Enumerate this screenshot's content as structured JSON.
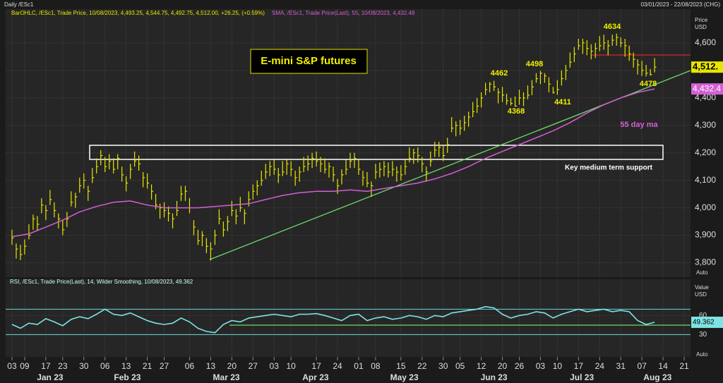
{
  "header": {
    "left": "Daily /ESc1",
    "right": "03/01/2023 - 22/08/2023 (CHG)"
  },
  "chart_data": [
    {
      "type": "ohlc",
      "title": "E-mini S&P futures",
      "y_label": "Price",
      "y_unit": "USD",
      "scale_mode": "Auto",
      "annotations": [
        "4634",
        "4462",
        "4498",
        "4368",
        "4411",
        "4478",
        "55 day ma",
        "Key medium term support"
      ],
      "xlim": [
        -1.5,
        160.5
      ],
      "ylim": [
        3750,
        4710
      ],
      "grid": true,
      "yticks": [
        {
          "value": 3800,
          "label": "3,800"
        },
        {
          "value": 3900,
          "label": "3,900"
        },
        {
          "value": 4000,
          "label": "4,000"
        },
        {
          "value": 4100,
          "label": "4,100"
        },
        {
          "value": 4200,
          "label": "4,200"
        },
        {
          "value": 4300,
          "label": "4,300"
        },
        {
          "value": 4400,
          "label": "4,400"
        },
        {
          "value": 4500,
          "label": "4,500"
        },
        {
          "value": 4600,
          "label": "4,600"
        }
      ],
      "series": [
        {
          "name": "BarOHLC, /ESc1, Trade Price, 10/08/2023, 4,493.25, 4,544.75, 4,492.75, 4,512.00, +26.25, (+0.59%)",
          "color": "#e6e600",
          "last_label": "4,512.",
          "x": [
            0,
            1,
            2,
            3,
            4,
            5,
            6,
            7,
            8,
            9,
            10,
            11,
            12,
            13,
            14,
            15,
            16,
            17,
            18,
            19,
            20,
            21,
            22,
            23,
            24,
            25,
            26,
            27,
            28,
            29,
            30,
            31,
            32,
            33,
            34,
            35,
            36,
            37,
            38,
            39,
            40,
            41,
            42,
            43,
            44,
            45,
            46,
            47,
            48,
            49,
            50,
            51,
            52,
            53,
            54,
            55,
            56,
            57,
            58,
            59,
            60,
            61,
            62,
            63,
            64,
            65,
            66,
            67,
            68,
            69,
            70,
            71,
            72,
            73,
            74,
            75,
            76,
            77,
            78,
            79,
            80,
            81,
            82,
            83,
            84,
            85,
            86,
            87,
            88,
            89,
            90,
            91,
            92,
            93,
            94,
            95,
            96,
            97,
            98,
            99,
            100,
            101,
            102,
            103,
            104,
            105,
            106,
            107,
            108,
            109,
            110,
            111,
            112,
            113,
            114,
            115,
            116,
            117,
            118,
            119,
            120,
            121,
            122,
            123,
            124,
            125,
            126,
            127,
            128,
            129,
            130,
            131,
            132,
            133,
            134,
            135,
            136,
            137,
            138,
            139,
            140,
            141,
            142,
            143,
            144,
            145,
            146,
            147,
            148,
            149,
            150,
            151,
            152
          ],
          "high": [
            3920,
            3870,
            3865,
            3885,
            3940,
            3975,
            3970,
            4035,
            4010,
            4065,
            4020,
            3980,
            3955,
            3985,
            4060,
            4055,
            4110,
            4125,
            4080,
            4145,
            4180,
            4210,
            4185,
            4195,
            4180,
            4195,
            4150,
            4115,
            4160,
            4205,
            4190,
            4130,
            4125,
            4085,
            4050,
            4015,
            4020,
            4005,
            3980,
            4025,
            4080,
            4080,
            4035,
            3955,
            3920,
            3915,
            3890,
            3875,
            3920,
            3995,
            3950,
            3970,
            4025,
            3995,
            4040,
            3995,
            4060,
            4085,
            4100,
            4135,
            4160,
            4170,
            4175,
            4145,
            4170,
            4175,
            4170,
            4135,
            4150,
            4185,
            4190,
            4200,
            4205,
            4185,
            4180,
            4165,
            4150,
            4105,
            4140,
            4175,
            4200,
            4200,
            4175,
            4135,
            4130,
            4095,
            4160,
            4165,
            4170,
            4165,
            4170,
            4150,
            4155,
            4175,
            4220,
            4215,
            4220,
            4185,
            4150,
            4205,
            4240,
            4240,
            4225,
            4255,
            4330,
            4315,
            4320,
            4335,
            4350,
            4385,
            4400,
            4420,
            4455,
            4458,
            4462,
            4435,
            4440,
            4415,
            4400,
            4405,
            4430,
            4420,
            4445,
            4465,
            4490,
            4498,
            4490,
            4475,
            4440,
            4465,
            4500,
            4520,
            4565,
            4585,
            4615,
            4615,
            4610,
            4595,
            4600,
            4625,
            4630,
            4610,
            4630,
            4634,
            4620,
            4615,
            4590,
            4565,
            4540,
            4535,
            4520,
            4505,
            4544.75
          ],
          "low": [
            3865,
            3815,
            3810,
            3830,
            3885,
            3920,
            3915,
            3980,
            3955,
            4010,
            3965,
            3925,
            3900,
            3930,
            4005,
            4000,
            4055,
            4070,
            4025,
            4090,
            4125,
            4155,
            4130,
            4140,
            4125,
            4140,
            4095,
            4060,
            4105,
            4150,
            4135,
            4075,
            4070,
            4030,
            3995,
            3960,
            3965,
            3950,
            3925,
            3970,
            4025,
            4025,
            3980,
            3900,
            3865,
            3860,
            3835,
            3808,
            3865,
            3940,
            3895,
            3915,
            3970,
            3940,
            3985,
            3940,
            4005,
            4030,
            4045,
            4080,
            4105,
            4115,
            4120,
            4090,
            4115,
            4120,
            4115,
            4080,
            4095,
            4130,
            4135,
            4145,
            4150,
            4130,
            4125,
            4110,
            4095,
            4050,
            4085,
            4120,
            4145,
            4145,
            4120,
            4080,
            4075,
            4040,
            4105,
            4110,
            4115,
            4110,
            4115,
            4095,
            4100,
            4120,
            4165,
            4160,
            4165,
            4130,
            4095,
            4150,
            4185,
            4185,
            4170,
            4200,
            4275,
            4260,
            4265,
            4280,
            4295,
            4330,
            4345,
            4365,
            4410,
            4420,
            4425,
            4380,
            4385,
            4375,
            4372,
            4368,
            4375,
            4370,
            4395,
            4410,
            4455,
            4450,
            4455,
            4420,
            4415,
            4411,
            4445,
            4465,
            4510,
            4530,
            4575,
            4560,
            4555,
            4540,
            4545,
            4570,
            4575,
            4555,
            4590,
            4590,
            4585,
            4550,
            4535,
            4510,
            4485,
            4480,
            4478,
            4481,
            4492.75
          ],
          "close": [
            3890,
            3850,
            3830,
            3860,
            3900,
            3960,
            3940,
            4010,
            3990,
            4030,
            3990,
            3960,
            3920,
            3960,
            4020,
            4040,
            4080,
            4100,
            4060,
            4110,
            4150,
            4190,
            4150,
            4170,
            4140,
            4180,
            4120,
            4090,
            4140,
            4170,
            4160,
            4110,
            4090,
            4060,
            4010,
            4000,
            3990,
            3980,
            3960,
            3990,
            4050,
            4060,
            4000,
            3930,
            3880,
            3900,
            3860,
            3850,
            3900,
            3960,
            3920,
            3950,
            3990,
            3970,
            4000,
            3980,
            4030,
            4060,
            4080,
            4100,
            4130,
            4150,
            4140,
            4120,
            4130,
            4160,
            4140,
            4110,
            4130,
            4150,
            4160,
            4180,
            4170,
            4160,
            4140,
            4150,
            4120,
            4080,
            4120,
            4140,
            4170,
            4180,
            4140,
            4110,
            4090,
            4080,
            4130,
            4140,
            4150,
            4130,
            4140,
            4130,
            4120,
            4150,
            4180,
            4200,
            4190,
            4160,
            4130,
            4170,
            4210,
            4220,
            4190,
            4230,
            4290,
            4300,
            4290,
            4310,
            4330,
            4350,
            4370,
            4400,
            4430,
            4450,
            4440,
            4420,
            4410,
            4390,
            4380,
            4370,
            4400,
            4400,
            4410,
            4440,
            4470,
            4490,
            4480,
            4450,
            4420,
            4430,
            4470,
            4500,
            4530,
            4560,
            4590,
            4600,
            4580,
            4570,
            4580,
            4590,
            4600,
            4590,
            4610,
            4620,
            4600,
            4590,
            4560,
            4540,
            4520,
            4500,
            4490,
            4485,
            4512
          ]
        },
        {
          "name": "SMA, /ESc1, Trade Price(Last), 55, 10/08/2023, 4,432.48",
          "color": "#d45fd4",
          "last_label": "4,432.4",
          "x": [
            0,
            4,
            8,
            12,
            16,
            20,
            24,
            28,
            32,
            36,
            40,
            44,
            48,
            52,
            56,
            60,
            64,
            68,
            72,
            76,
            80,
            84,
            88,
            92,
            96,
            100,
            104,
            108,
            112,
            116,
            120,
            124,
            128,
            132,
            136,
            140,
            144,
            148,
            152
          ],
          "values": [
            3895,
            3905,
            3930,
            3955,
            3985,
            4005,
            4020,
            4025,
            4010,
            4000,
            4000,
            4000,
            4005,
            4010,
            4015,
            4030,
            4045,
            4055,
            4060,
            4060,
            4065,
            4060,
            4070,
            4080,
            4090,
            4105,
            4125,
            4150,
            4180,
            4205,
            4230,
            4255,
            4280,
            4310,
            4345,
            4375,
            4400,
            4420,
            4432.48
          ]
        }
      ]
    },
    {
      "type": "line",
      "y_label": "Value",
      "y_unit": "USD",
      "scale_mode": "Auto",
      "xlim": [
        -1.5,
        160.5
      ],
      "ylim": [
        -4,
        107
      ],
      "yticks": [
        60,
        30
      ],
      "hlines": [
        70,
        30
      ],
      "grid": true,
      "xticks": [
        {
          "value": 0,
          "label": "03"
        },
        {
          "value": 3,
          "label": "09"
        },
        {
          "value": 8,
          "label": "17"
        },
        {
          "value": 12,
          "label": "23"
        },
        {
          "value": 17,
          "label": "30"
        },
        {
          "value": 22,
          "label": "06"
        },
        {
          "value": 27,
          "label": "13"
        },
        {
          "value": 32,
          "label": "21"
        },
        {
          "value": 36,
          "label": "27"
        },
        {
          "value": 42,
          "label": "06"
        },
        {
          "value": 47,
          "label": "13"
        },
        {
          "value": 52,
          "label": "20"
        },
        {
          "value": 57,
          "label": "27"
        },
        {
          "value": 62,
          "label": "03"
        },
        {
          "value": 66,
          "label": "10"
        },
        {
          "value": 72,
          "label": "17"
        },
        {
          "value": 77,
          "label": "24"
        },
        {
          "value": 82,
          "label": "01"
        },
        {
          "value": 86,
          "label": "08"
        },
        {
          "value": 92,
          "label": "15"
        },
        {
          "value": 97,
          "label": "22"
        },
        {
          "value": 102,
          "label": "30"
        },
        {
          "value": 106,
          "label": "05"
        },
        {
          "value": 111,
          "label": "12"
        },
        {
          "value": 116,
          "label": "20"
        },
        {
          "value": 120,
          "label": "26"
        },
        {
          "value": 125,
          "label": "03"
        },
        {
          "value": 129,
          "label": "10"
        },
        {
          "value": 134,
          "label": "17"
        },
        {
          "value": 139,
          "label": "24"
        },
        {
          "value": 144,
          "label": "31"
        },
        {
          "value": 149,
          "label": "07"
        },
        {
          "value": 154,
          "label": "14"
        },
        {
          "value": 159,
          "label": "21"
        }
      ],
      "month_labels": [
        {
          "value": 9,
          "label": "Jan 23"
        },
        {
          "value": 27.3,
          "label": "Feb 23"
        },
        {
          "value": 50.7,
          "label": "Mar 23"
        },
        {
          "value": 71.8,
          "label": "Apr 23"
        },
        {
          "value": 92.8,
          "label": "May 23"
        },
        {
          "value": 114,
          "label": "Jun 23"
        },
        {
          "value": 134.8,
          "label": "Jul 23"
        },
        {
          "value": 152.7,
          "label": "Aug 23"
        }
      ],
      "series": [
        {
          "name": "RSI, /ESc1, Trade Price(Last), 14, Wilder Smoothing, 10/08/2023, 49.362",
          "color": "#7fe3e3",
          "last_label": "49.362",
          "x": [
            0,
            2,
            4,
            6,
            8,
            10,
            12,
            14,
            16,
            18,
            20,
            22,
            24,
            26,
            28,
            30,
            32,
            34,
            36,
            38,
            40,
            42,
            44,
            46,
            48,
            50,
            52,
            54,
            56,
            58,
            60,
            62,
            64,
            66,
            68,
            70,
            72,
            74,
            76,
            78,
            80,
            82,
            84,
            86,
            88,
            90,
            92,
            94,
            96,
            98,
            100,
            102,
            104,
            106,
            108,
            110,
            112,
            114,
            116,
            118,
            120,
            122,
            124,
            126,
            128,
            130,
            132,
            134,
            136,
            138,
            140,
            142,
            144,
            146,
            148,
            150,
            152
          ],
          "values": [
            46,
            40,
            48,
            46,
            55,
            50,
            44,
            54,
            58,
            55,
            62,
            70,
            62,
            60,
            64,
            58,
            52,
            48,
            46,
            48,
            56,
            50,
            40,
            35,
            33,
            46,
            52,
            50,
            56,
            58,
            60,
            62,
            60,
            58,
            62,
            62,
            63,
            60,
            56,
            52,
            60,
            62,
            52,
            56,
            58,
            54,
            56,
            60,
            58,
            54,
            60,
            58,
            64,
            66,
            68,
            70,
            74,
            72,
            62,
            56,
            60,
            62,
            66,
            64,
            56,
            62,
            66,
            70,
            66,
            68,
            70,
            66,
            68,
            66,
            52,
            46,
            49.362
          ]
        }
      ]
    }
  ]
}
